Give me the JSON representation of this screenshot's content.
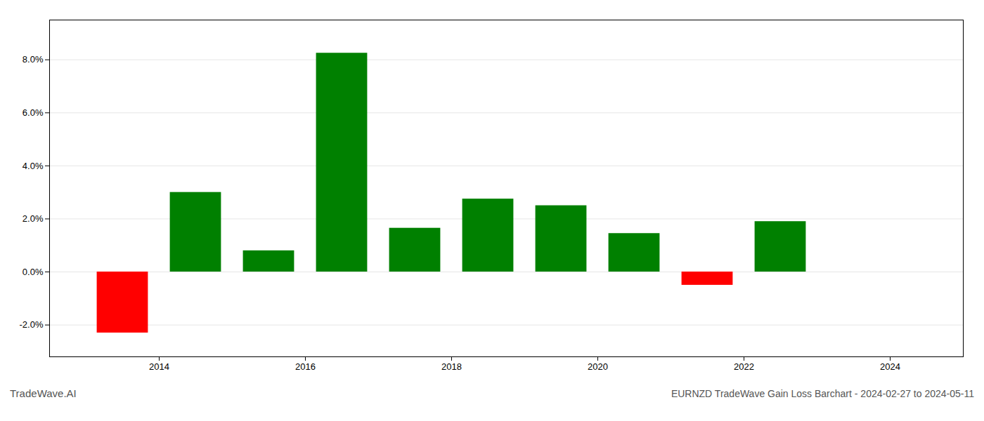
{
  "chart_data": {
    "type": "bar",
    "title": "EURNZD TradeWave Gain Loss Barchart - 2024-02-27 to 2024-05-11",
    "annotations": [
      "TradeWave.AI"
    ],
    "x": [
      2013.5,
      2014.5,
      2015.5,
      2016.5,
      2017.5,
      2018.5,
      2019.5,
      2020.5,
      2021.5,
      2022.5
    ],
    "values": [
      -0.023,
      0.03,
      0.008,
      0.0825,
      0.0165,
      0.0275,
      0.025,
      0.0145,
      -0.005,
      0.019
    ],
    "colors": [
      "#ff0000",
      "#008000",
      "#008000",
      "#008000",
      "#008000",
      "#008000",
      "#008000",
      "#008000",
      "#ff0000",
      "#008000"
    ],
    "xlim": [
      2012.5,
      2025.0
    ],
    "xticks": [
      2014,
      2016,
      2018,
      2020,
      2022,
      2024
    ],
    "ylim": [
      -0.032,
      0.095
    ],
    "yticks": [
      {
        "value": -0.02,
        "label": "-2.0%"
      },
      {
        "value": 0,
        "label": "0.0%"
      },
      {
        "value": 0.02,
        "label": "2.0%"
      },
      {
        "value": 0.04,
        "label": "4.0%"
      },
      {
        "value": 0.06,
        "label": "6.0%"
      },
      {
        "value": 0.08,
        "label": "8.0%"
      }
    ],
    "grid": true
  }
}
